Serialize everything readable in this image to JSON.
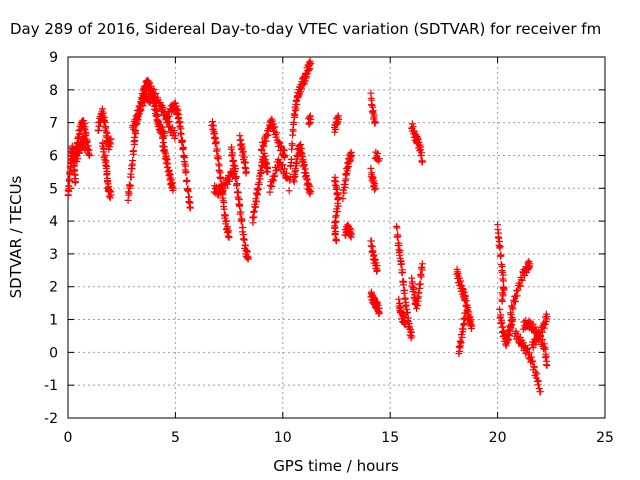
{
  "chart_data": {
    "type": "scatter",
    "title": "Day 289 of 2016, Sidereal Day-to-day VTEC variation (SDTVAR) for receiver fm",
    "xlabel": "GPS time / hours",
    "ylabel": "SDTVAR / TECUs",
    "xlim": [
      0,
      25
    ],
    "ylim": [
      -2,
      9
    ],
    "xticks": [
      "0",
      "5",
      "10",
      "15",
      "20",
      "25"
    ],
    "yticks": [
      "-2",
      "-1",
      "0",
      "1",
      "2",
      "3",
      "4",
      "5",
      "6",
      "7",
      "8",
      "9"
    ],
    "grid": true,
    "marker": "+",
    "color": "#ff0000",
    "series": [
      {
        "segments": [
          [
            [
              0.0,
              4.8
            ],
            [
              0.05,
              5.1
            ],
            [
              0.1,
              5.6
            ],
            [
              0.15,
              5.9
            ],
            [
              0.2,
              6.2
            ],
            [
              0.25,
              6.0
            ],
            [
              0.3,
              5.5
            ],
            [
              0.35,
              5.2
            ]
          ],
          [
            [
              0.3,
              5.8
            ],
            [
              0.4,
              6.2
            ],
            [
              0.5,
              6.6
            ],
            [
              0.6,
              6.9
            ],
            [
              0.7,
              7.0
            ],
            [
              0.8,
              6.8
            ],
            [
              0.9,
              6.3
            ],
            [
              1.0,
              6.0
            ]
          ],
          [
            [
              0.4,
              5.9
            ],
            [
              0.5,
              6.1
            ],
            [
              0.6,
              6.3
            ],
            [
              0.7,
              6.5
            ],
            [
              0.8,
              6.2
            ]
          ],
          [
            [
              1.4,
              6.8
            ],
            [
              1.5,
              7.1
            ],
            [
              1.6,
              7.3
            ],
            [
              1.7,
              7.0
            ],
            [
              1.8,
              6.6
            ],
            [
              1.9,
              6.3
            ],
            [
              2.0,
              6.5
            ]
          ],
          [
            [
              1.6,
              6.4
            ],
            [
              1.7,
              6.0
            ],
            [
              1.8,
              5.6
            ],
            [
              1.85,
              5.1
            ],
            [
              1.9,
              4.9
            ],
            [
              2.0,
              4.8
            ]
          ],
          [
            [
              2.8,
              4.7
            ],
            [
              2.9,
              5.2
            ],
            [
              3.0,
              5.8
            ],
            [
              3.1,
              6.5
            ],
            [
              3.2,
              7.0
            ],
            [
              3.3,
              7.3
            ],
            [
              3.4,
              7.6
            ],
            [
              3.5,
              7.9
            ],
            [
              3.6,
              8.1
            ],
            [
              3.7,
              8.2
            ],
            [
              3.8,
              8.1
            ],
            [
              3.9,
              7.9
            ],
            [
              4.0,
              7.6
            ],
            [
              4.1,
              7.3
            ],
            [
              4.2,
              7.0
            ],
            [
              4.3,
              6.8
            ],
            [
              4.4,
              6.7
            ],
            [
              4.5,
              6.6
            ]
          ],
          [
            [
              3.0,
              6.8
            ],
            [
              3.2,
              7.2
            ],
            [
              3.4,
              7.5
            ],
            [
              3.6,
              7.8
            ],
            [
              3.8,
              7.7
            ],
            [
              4.0,
              7.9
            ],
            [
              4.2,
              7.6
            ],
            [
              4.4,
              7.4
            ],
            [
              4.6,
              7.1
            ],
            [
              4.8,
              6.8
            ],
            [
              5.0,
              6.6
            ]
          ],
          [
            [
              4.4,
              6.4
            ],
            [
              4.5,
              6.1
            ],
            [
              4.6,
              5.8
            ],
            [
              4.7,
              5.5
            ],
            [
              4.8,
              5.2
            ],
            [
              4.9,
              5.0
            ]
          ],
          [
            [
              4.6,
              7.2
            ],
            [
              4.8,
              7.4
            ],
            [
              5.0,
              7.5
            ],
            [
              5.1,
              7.3
            ],
            [
              5.2,
              7.0
            ],
            [
              5.3,
              6.5
            ],
            [
              5.4,
              6.0
            ],
            [
              5.5,
              5.4
            ],
            [
              5.6,
              4.8
            ],
            [
              5.7,
              4.4
            ]
          ],
          [
            [
              6.7,
              7.0
            ],
            [
              6.8,
              6.7
            ],
            [
              6.9,
              6.3
            ],
            [
              7.0,
              5.8
            ],
            [
              7.1,
              5.3
            ],
            [
              7.2,
              4.8
            ],
            [
              7.3,
              4.2
            ],
            [
              7.4,
              3.8
            ],
            [
              7.5,
              3.5
            ]
          ],
          [
            [
              6.8,
              5.0
            ],
            [
              7.0,
              4.9
            ],
            [
              7.2,
              5.0
            ],
            [
              7.4,
              5.2
            ],
            [
              7.6,
              5.4
            ],
            [
              7.8,
              5.6
            ]
          ],
          [
            [
              7.6,
              6.2
            ],
            [
              7.7,
              5.8
            ],
            [
              7.8,
              5.4
            ],
            [
              7.9,
              4.9
            ],
            [
              8.0,
              4.4
            ],
            [
              8.1,
              3.9
            ],
            [
              8.2,
              3.4
            ],
            [
              8.3,
              3.0
            ],
            [
              8.4,
              2.9
            ]
          ],
          [
            [
              8.0,
              6.5
            ],
            [
              8.1,
              6.2
            ],
            [
              8.2,
              5.9
            ],
            [
              8.3,
              5.5
            ]
          ],
          [
            [
              8.6,
              4.0
            ],
            [
              8.7,
              4.4
            ],
            [
              8.8,
              4.8
            ],
            [
              8.9,
              5.2
            ],
            [
              9.0,
              5.6
            ],
            [
              9.1,
              6.0
            ],
            [
              9.2,
              5.8
            ],
            [
              9.3,
              5.5
            ]
          ],
          [
            [
              9.0,
              6.2
            ],
            [
              9.2,
              6.5
            ],
            [
              9.4,
              6.9
            ],
            [
              9.5,
              7.0
            ],
            [
              9.6,
              6.8
            ],
            [
              9.8,
              6.4
            ],
            [
              10.0,
              6.1
            ],
            [
              10.1,
              6.0
            ]
          ],
          [
            [
              9.4,
              5.0
            ],
            [
              9.6,
              5.4
            ],
            [
              9.8,
              5.8
            ],
            [
              10.0,
              5.6
            ],
            [
              10.2,
              5.3
            ]
          ],
          [
            [
              10.3,
              5.0
            ],
            [
              10.4,
              6.0
            ],
            [
              10.5,
              7.0
            ],
            [
              10.6,
              7.5
            ],
            [
              10.7,
              7.8
            ],
            [
              10.8,
              8.0
            ],
            [
              10.9,
              8.2
            ],
            [
              11.0,
              8.3
            ],
            [
              11.1,
              8.5
            ],
            [
              11.2,
              8.7
            ],
            [
              11.3,
              8.8
            ]
          ],
          [
            [
              10.5,
              5.2
            ],
            [
              10.6,
              5.6
            ],
            [
              10.7,
              6.1
            ],
            [
              10.8,
              6.3
            ],
            [
              10.9,
              6.0
            ],
            [
              11.0,
              5.6
            ],
            [
              11.1,
              5.3
            ],
            [
              11.2,
              5.0
            ],
            [
              11.3,
              4.9
            ]
          ],
          [
            [
              11.2,
              7.0
            ],
            [
              11.3,
              7.1
            ]
          ],
          [
            [
              12.4,
              6.8
            ],
            [
              12.5,
              7.0
            ],
            [
              12.6,
              7.1
            ]
          ],
          [
            [
              12.4,
              5.3
            ],
            [
              12.5,
              5.0
            ],
            [
              12.6,
              4.6
            ],
            [
              12.5,
              4.2
            ],
            [
              12.4,
              3.8
            ],
            [
              12.5,
              3.4
            ]
          ],
          [
            [
              12.8,
              4.8
            ],
            [
              12.9,
              5.2
            ],
            [
              13.0,
              5.6
            ],
            [
              13.1,
              5.9
            ],
            [
              13.2,
              6.0
            ]
          ],
          [
            [
              12.9,
              3.6
            ],
            [
              13.0,
              3.8
            ],
            [
              13.1,
              3.7
            ],
            [
              13.2,
              3.6
            ]
          ],
          [
            [
              14.1,
              7.8
            ],
            [
              14.2,
              7.3
            ],
            [
              14.3,
              7.0
            ]
          ],
          [
            [
              14.1,
              5.5
            ],
            [
              14.2,
              5.2
            ],
            [
              14.3,
              5.0
            ]
          ],
          [
            [
              14.1,
              3.4
            ],
            [
              14.2,
              3.0
            ],
            [
              14.3,
              2.7
            ],
            [
              14.4,
              2.5
            ]
          ],
          [
            [
              14.1,
              1.8
            ],
            [
              14.2,
              1.6
            ],
            [
              14.3,
              1.5
            ],
            [
              14.4,
              1.4
            ],
            [
              14.5,
              1.2
            ]
          ],
          [
            [
              14.3,
              6.0
            ],
            [
              14.5,
              5.9
            ]
          ],
          [
            [
              15.3,
              3.8
            ],
            [
              15.4,
              3.2
            ],
            [
              15.5,
              2.8
            ],
            [
              15.6,
              2.2
            ],
            [
              15.7,
              1.6
            ],
            [
              15.8,
              1.1
            ],
            [
              15.9,
              0.7
            ],
            [
              16.0,
              0.5
            ]
          ],
          [
            [
              15.4,
              1.5
            ],
            [
              15.5,
              1.2
            ],
            [
              15.6,
              1.0
            ],
            [
              15.7,
              0.9
            ]
          ],
          [
            [
              16.0,
              2.2
            ],
            [
              16.1,
              1.8
            ],
            [
              16.2,
              1.4
            ],
            [
              16.3,
              1.6
            ],
            [
              16.4,
              2.2
            ],
            [
              16.5,
              2.7
            ]
          ],
          [
            [
              16.0,
              6.9
            ],
            [
              16.1,
              6.7
            ],
            [
              16.2,
              6.5
            ],
            [
              16.3,
              6.4
            ],
            [
              16.4,
              6.2
            ],
            [
              16.5,
              5.8
            ]
          ],
          [
            [
              18.1,
              2.5
            ],
            [
              18.2,
              2.2
            ],
            [
              18.3,
              2.0
            ],
            [
              18.4,
              1.8
            ],
            [
              18.5,
              1.6
            ],
            [
              18.6,
              1.3
            ],
            [
              18.7,
              1.0
            ],
            [
              18.8,
              0.8
            ]
          ],
          [
            [
              18.2,
              0.0
            ],
            [
              18.3,
              0.4
            ],
            [
              18.4,
              0.8
            ],
            [
              18.5,
              1.2
            ]
          ],
          [
            [
              20.0,
              3.8
            ],
            [
              20.1,
              3.2
            ],
            [
              20.2,
              2.6
            ],
            [
              20.3,
              2.0
            ],
            [
              20.2,
              1.6
            ]
          ],
          [
            [
              20.1,
              1.2
            ],
            [
              20.2,
              0.8
            ],
            [
              20.3,
              0.5
            ],
            [
              20.4,
              0.3
            ],
            [
              20.5,
              0.5
            ],
            [
              20.6,
              0.8
            ],
            [
              20.7,
              1.0
            ]
          ],
          [
            [
              20.6,
              1.2
            ],
            [
              20.8,
              1.6
            ],
            [
              21.0,
              2.0
            ],
            [
              21.2,
              2.4
            ],
            [
              21.4,
              2.6
            ],
            [
              21.5,
              2.7
            ]
          ],
          [
            [
              20.8,
              0.6
            ],
            [
              21.0,
              0.4
            ],
            [
              21.2,
              0.2
            ],
            [
              21.4,
              0.0
            ],
            [
              21.6,
              -0.3
            ],
            [
              21.8,
              -0.7
            ],
            [
              22.0,
              -1.2
            ]
          ],
          [
            [
              21.2,
              0.8
            ],
            [
              21.4,
              0.9
            ],
            [
              21.6,
              0.8
            ],
            [
              21.8,
              0.6
            ],
            [
              22.0,
              0.4
            ],
            [
              22.2,
              0.1
            ],
            [
              22.3,
              -0.4
            ]
          ],
          [
            [
              21.6,
              0.2
            ],
            [
              21.8,
              0.4
            ],
            [
              22.0,
              0.6
            ],
            [
              22.2,
              0.9
            ],
            [
              22.3,
              1.1
            ]
          ]
        ]
      }
    ]
  }
}
